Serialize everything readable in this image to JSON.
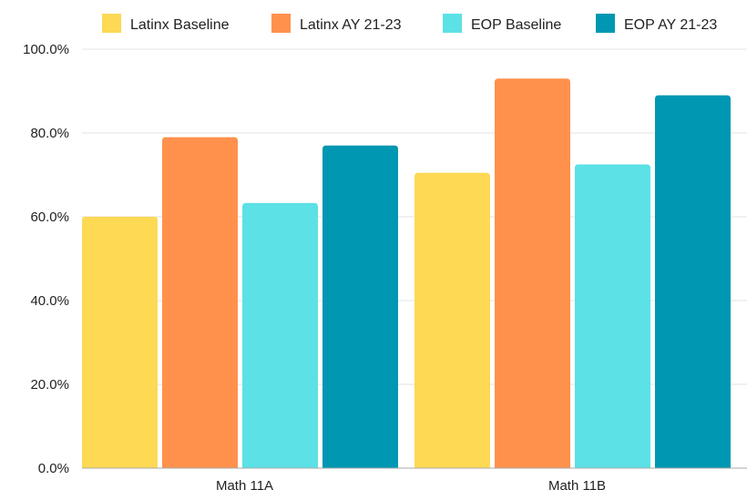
{
  "chart_data": {
    "type": "bar",
    "categories": [
      "Math 11A",
      "Math 11B"
    ],
    "series": [
      {
        "name": "Latinx Baseline",
        "color": "#FDD954",
        "values": [
          60.0,
          70.5
        ]
      },
      {
        "name": "Latinx AY 21-23",
        "color": "#FF914D",
        "values": [
          79.0,
          93.0
        ]
      },
      {
        "name": "EOP Baseline",
        "color": "#5CE1E6",
        "values": [
          63.3,
          72.5
        ]
      },
      {
        "name": "EOP AY 21-23",
        "color": "#0097B2",
        "values": [
          77.0,
          89.0
        ]
      }
    ],
    "y_ticks": [
      "0.0%",
      "20.0%",
      "40.0%",
      "60.0%",
      "80.0%",
      "100.0%"
    ],
    "ylim": [
      0,
      100
    ],
    "grid": true,
    "legend_position": "top",
    "title": "",
    "xlabel": "",
    "ylabel": ""
  }
}
